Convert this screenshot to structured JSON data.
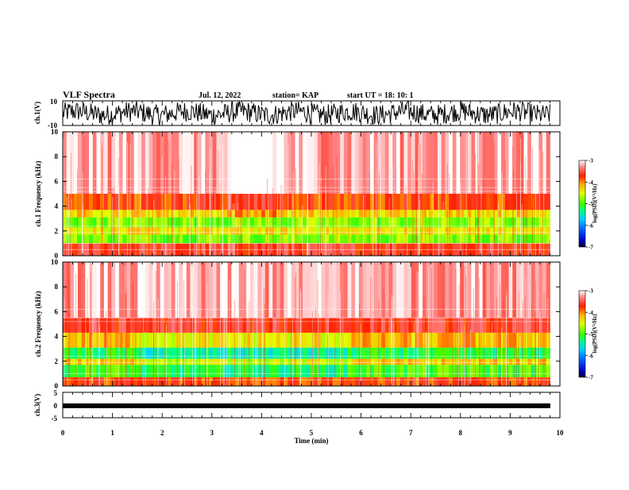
{
  "header": {
    "title": "VLF Spectra",
    "date": "Jul. 12, 2022",
    "station": "station= KAP",
    "start": "start UT = 18: 10: 1"
  },
  "chart_data": [
    {
      "id": "waveform-ch1",
      "type": "line",
      "ylabel": "ch.1(V)",
      "ylim": [
        -10,
        10
      ],
      "yticks": [
        10,
        -10
      ],
      "xlim": [
        0,
        10
      ],
      "style": "dense noise waveform",
      "color": "#000000"
    },
    {
      "id": "spectrogram-ch1",
      "type": "heatmap",
      "ylabel": "ch.1 Frequency (kHz)",
      "ylim": [
        0,
        10
      ],
      "yticks": [
        0,
        2,
        4,
        6,
        8,
        10
      ],
      "xlim": [
        0,
        10
      ],
      "data_end_min": 9.8,
      "colorbar": {
        "label": "log(PSD)(V²/Hz)",
        "range": [
          -7,
          -3
        ],
        "ticks": [
          -3,
          -4,
          -5,
          -6,
          -7
        ]
      },
      "bands_khz": [
        {
          "from": 0,
          "to": 1.0,
          "level": -3.6
        },
        {
          "from": 1.0,
          "to": 1.7,
          "level": -4.8
        },
        {
          "from": 1.7,
          "to": 2.3,
          "level": -4.4
        },
        {
          "from": 2.3,
          "to": 3.1,
          "level": -4.8
        },
        {
          "from": 3.1,
          "to": 3.7,
          "level": -4.3
        },
        {
          "from": 3.7,
          "to": 5.0,
          "level": -3.8
        },
        {
          "from": 5.0,
          "to": 10.0,
          "level": -3.2
        }
      ]
    },
    {
      "id": "spectrogram-ch2",
      "type": "heatmap",
      "ylabel": "ch.2 Frequency (kHz)",
      "ylim": [
        0,
        10
      ],
      "yticks": [
        0,
        2,
        4,
        6,
        8,
        10
      ],
      "xlim": [
        0,
        10
      ],
      "data_end_min": 9.8,
      "colorbar": {
        "label": "log(PSD)(V²/Hz)",
        "range": [
          -7,
          -3
        ],
        "ticks": [
          -3,
          -4,
          -5,
          -6,
          -7
        ]
      },
      "bands_khz": [
        {
          "from": 0,
          "to": 0.7,
          "level": -3.8
        },
        {
          "from": 0.7,
          "to": 1.7,
          "level": -5.0
        },
        {
          "from": 1.7,
          "to": 2.2,
          "level": -4.3
        },
        {
          "from": 2.2,
          "to": 3.1,
          "level": -5.2
        },
        {
          "from": 3.1,
          "to": 4.3,
          "level": -4.2
        },
        {
          "from": 4.3,
          "to": 5.5,
          "level": -3.6
        },
        {
          "from": 5.5,
          "to": 10.0,
          "level": -3.2
        }
      ]
    },
    {
      "id": "waveform-ch3",
      "type": "line",
      "ylabel": "ch.3(V)",
      "ylim": [
        -5,
        5
      ],
      "yticks": [
        5,
        0,
        -5
      ],
      "xlim": [
        0,
        10
      ],
      "style": "near-constant thick band",
      "color": "#000000"
    }
  ],
  "xaxis": {
    "label": "Time (min)",
    "ticks": [
      "0",
      "1",
      "2",
      "3",
      "4",
      "5",
      "6",
      "7",
      "8",
      "9",
      "10"
    ]
  }
}
